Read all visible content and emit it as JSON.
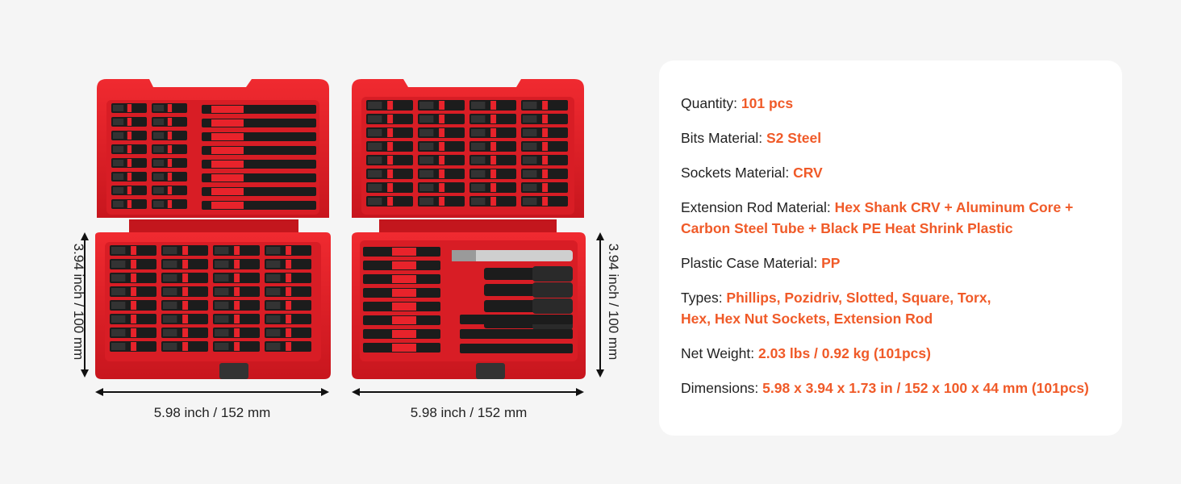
{
  "dimensions": {
    "left_case_width": "5.98 inch / 152 mm",
    "right_case_width": "5.98 inch / 152 mm",
    "left_case_height": "3.94 inch / 100 mm",
    "right_case_height": "3.94 inch / 100 mm"
  },
  "specs": {
    "quantity": {
      "label": "Quantity: ",
      "value": "101 pcs"
    },
    "bits_material": {
      "label": "Bits Material: ",
      "value": "S2 Steel"
    },
    "sockets_material": {
      "label": "Sockets Material: ",
      "value": "CRV"
    },
    "extension_rod": {
      "label": "Extension Rod Material: ",
      "value_line1": "Hex Shank CRV + Aluminum Core +",
      "value_line2": "Carbon Steel Tube + Black PE Heat Shrink Plastic"
    },
    "plastic_case": {
      "label": "Plastic Case Material: ",
      "value": "PP"
    },
    "types": {
      "label": "Types: ",
      "value_line1": "Phillips, Pozidriv, Slotted, Square, Torx,",
      "value_line2": "Hex, Hex Nut Sockets, Extension Rod"
    },
    "net_weight": {
      "label": "Net Weight: ",
      "value": "2.03 lbs / 0.92 kg (101pcs)"
    },
    "dims": {
      "label": "Dimensions: ",
      "value": "5.98 x 3.94 x 1.73 in / 152 x 100 x 44 mm (101pcs)"
    }
  },
  "colors": {
    "accent": "#f05a28",
    "case_red": "#e0202a",
    "bit_black": "#1c1c1c"
  }
}
